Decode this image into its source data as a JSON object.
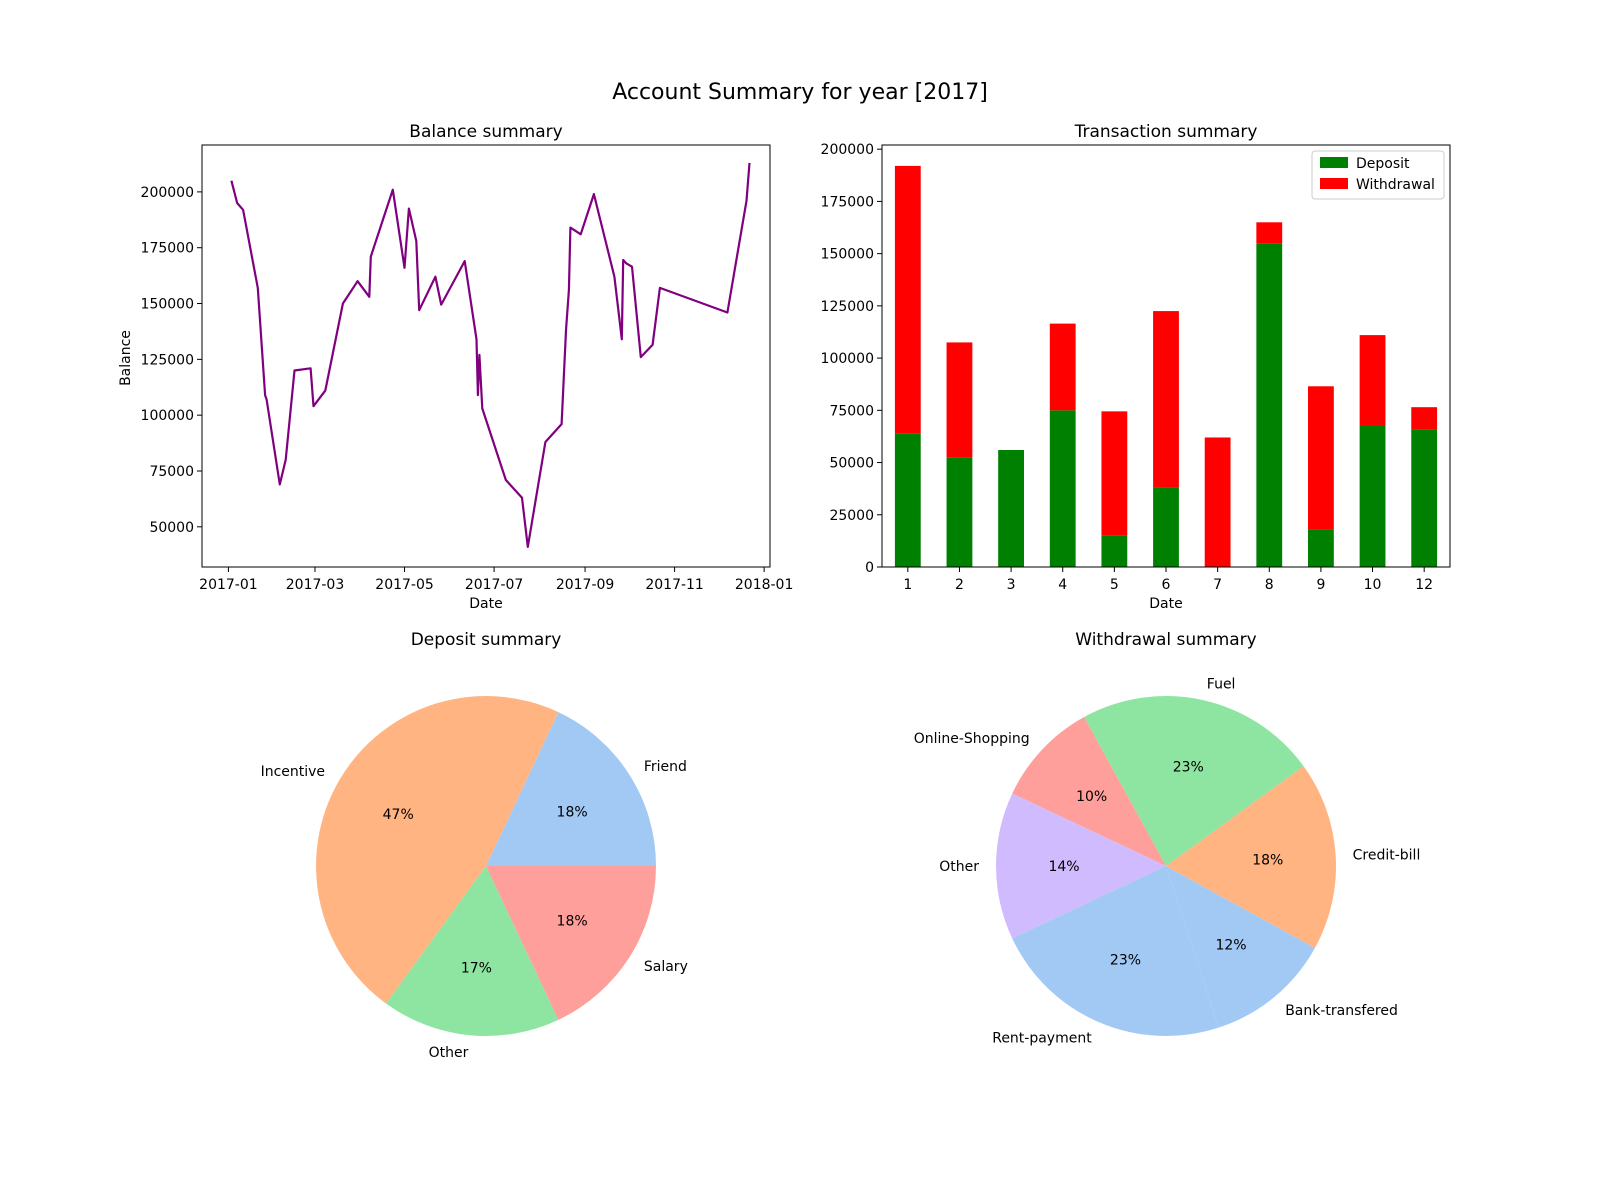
{
  "figure": {
    "title": "Account Summary for year [2017]"
  },
  "chart_data": [
    {
      "type": "line",
      "title": "Balance summary",
      "xlabel": "Date",
      "ylabel": "Balance",
      "color": "#800080",
      "xlim": [
        "2016-12-14",
        "2018-01-05"
      ],
      "ylim": [
        32000,
        221000
      ],
      "x_ticks": [
        "2017-01",
        "2017-03",
        "2017-05",
        "2017-07",
        "2017-09",
        "2017-11",
        "2018-01"
      ],
      "y_ticks": [
        50000,
        75000,
        100000,
        125000,
        150000,
        175000,
        200000
      ],
      "x": [
        "2017-01-03",
        "2017-01-07",
        "2017-01-11",
        "2017-01-21",
        "2017-01-26",
        "2017-01-27",
        "2017-02-05",
        "2017-02-09",
        "2017-02-15",
        "2017-02-26",
        "2017-02-28",
        "2017-03-08",
        "2017-03-20",
        "2017-03-30",
        "2017-04-07",
        "2017-04-08",
        "2017-04-23",
        "2017-05-01",
        "2017-05-04",
        "2017-05-09",
        "2017-05-11",
        "2017-05-22",
        "2017-05-26",
        "2017-06-11",
        "2017-06-19",
        "2017-06-20",
        "2017-06-21",
        "2017-06-23",
        "2017-07-09",
        "2017-07-20",
        "2017-07-24",
        "2017-08-05",
        "2017-08-16",
        "2017-08-19",
        "2017-08-21",
        "2017-08-22",
        "2017-08-29",
        "2017-09-07",
        "2017-09-21",
        "2017-09-26",
        "2017-09-27",
        "2017-09-29",
        "2017-10-03",
        "2017-10-09",
        "2017-10-17",
        "2017-10-22",
        "2017-12-07",
        "2017-12-20",
        "2017-12-22"
      ],
      "y": [
        205000,
        195000,
        192000,
        157000,
        109000,
        107000,
        69000,
        80000,
        120000,
        121000,
        104000,
        111000,
        150000,
        160000,
        153000,
        171000,
        201000,
        166000,
        192500,
        178000,
        147000,
        162000,
        149500,
        169000,
        134000,
        109000,
        127000,
        103000,
        71000,
        63000,
        41000,
        88000,
        96000,
        138000,
        156000,
        184000,
        181000,
        199000,
        162000,
        134000,
        169500,
        168000,
        166500,
        126000,
        131500,
        157000,
        146000,
        196000,
        213000
      ]
    },
    {
      "type": "bar",
      "stacked": true,
      "title": "Transaction summary",
      "xlabel": "Date",
      "ylabel": "",
      "categories": [
        "1",
        "2",
        "3",
        "4",
        "5",
        "6",
        "7",
        "8",
        "9",
        "10",
        "12"
      ],
      "ylim": [
        0,
        202000
      ],
      "y_ticks": [
        0,
        25000,
        50000,
        75000,
        100000,
        125000,
        150000,
        175000,
        200000
      ],
      "legend": "top-right",
      "series": [
        {
          "name": "Deposit",
          "color": "#008000",
          "values": [
            64000,
            52500,
            56000,
            75000,
            15000,
            38000,
            0,
            155000,
            18000,
            67500,
            66000
          ]
        },
        {
          "name": "Withdrawal",
          "color": "#ff0000",
          "values": [
            128000,
            55000,
            0,
            41500,
            59500,
            84500,
            62000,
            10000,
            68500,
            43500,
            10500
          ]
        }
      ]
    },
    {
      "type": "pie",
      "title": "Deposit summary",
      "slices": [
        {
          "label": "Friend",
          "pct_label": "18%",
          "value": 18,
          "color": "#a1c9f4"
        },
        {
          "label": "Incentive",
          "pct_label": "47%",
          "value": 47,
          "color": "#ffb482"
        },
        {
          "label": "Other",
          "pct_label": "17%",
          "value": 17,
          "color": "#8de5a1"
        },
        {
          "label": "Salary",
          "pct_label": "18%",
          "value": 18,
          "color": "#ff9f9b"
        }
      ]
    },
    {
      "type": "pie",
      "title": "Withdrawal summary",
      "slices": [
        {
          "label": "Bank-transfered",
          "pct_label": "12%",
          "value": 12,
          "color": "#a1c9f4"
        },
        {
          "label": "Credit-bill",
          "pct_label": "18%",
          "value": 18,
          "color": "#ffb482"
        },
        {
          "label": "Fuel",
          "pct_label": "23%",
          "value": 23,
          "color": "#8de5a1"
        },
        {
          "label": "Online-Shopping",
          "pct_label": "10%",
          "value": 10,
          "color": "#ff9f9b"
        },
        {
          "label": "Other",
          "pct_label": "14%",
          "value": 14,
          "color": "#d0bbff"
        },
        {
          "label": "Rent-payment",
          "pct_label": "23%",
          "value": 23,
          "color": "#a1c9f4"
        }
      ]
    }
  ]
}
